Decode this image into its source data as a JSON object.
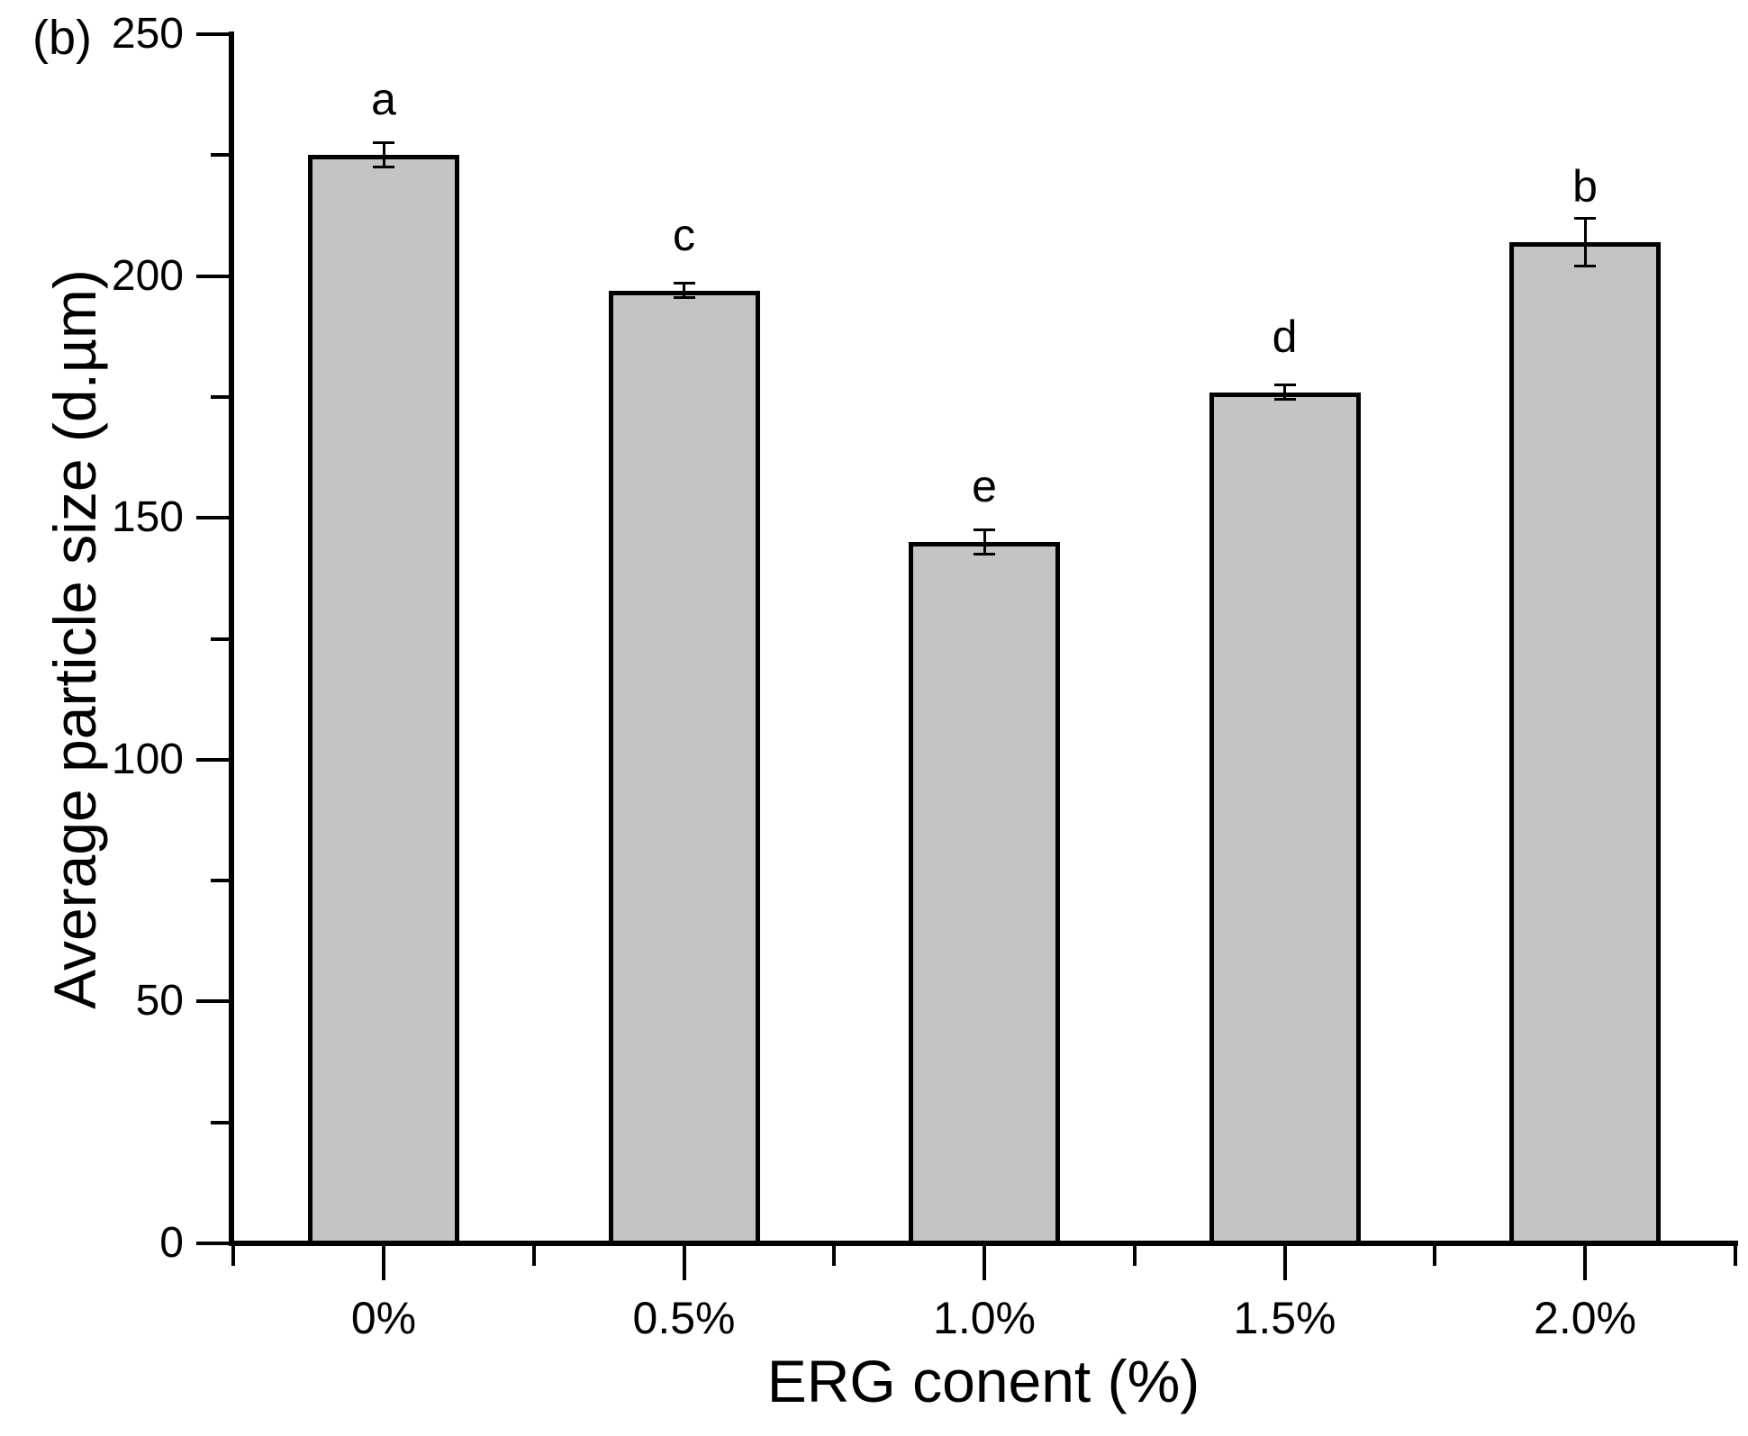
{
  "figure_label": "(b)",
  "chart_data": {
    "type": "bar",
    "title": "",
    "xlabel": "ERG conent (%)",
    "ylabel": "Average particle size (d.µm)",
    "categories": [
      "0%",
      "0.5%",
      "1.0%",
      "1.5%",
      "2.0%"
    ],
    "values": [
      225,
      197,
      145,
      176,
      207
    ],
    "errors": [
      2.5,
      1.5,
      2.5,
      1.5,
      5
    ],
    "bar_labels": [
      "a",
      "c",
      "e",
      "d",
      "b"
    ],
    "ylim": [
      0,
      250
    ],
    "y_major_ticks": [
      0,
      50,
      100,
      150,
      200,
      250
    ],
    "y_tick_labels": [
      "0",
      "50",
      "100",
      "150",
      "200",
      "250"
    ],
    "y_minor_step": 25,
    "grid": false,
    "legend": null,
    "bar_fill_color": "#c4c4c4",
    "bar_border_color": "#000000",
    "axis_color": "#000000",
    "text_color": "#000000"
  }
}
